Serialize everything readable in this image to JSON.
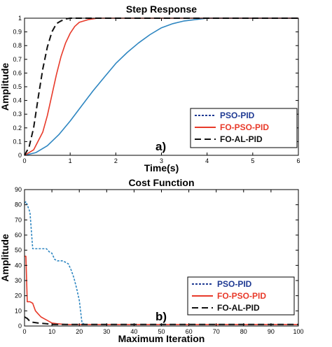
{
  "chart_data": [
    {
      "type": "line",
      "title": "Step Response",
      "xlabel": "Time(s)",
      "ylabel": "Amplitude",
      "panel_label": "a)",
      "xlim": [
        0,
        6
      ],
      "ylim": [
        0,
        1
      ],
      "xticks": [
        0,
        1,
        2,
        3,
        4,
        5,
        6
      ],
      "yticks": [
        0,
        0.1,
        0.2,
        0.3,
        0.4,
        0.5,
        0.6,
        0.7,
        0.8,
        0.9,
        1
      ],
      "legend_position": "bottom-right",
      "grid": false,
      "legend": [
        {
          "label": "PSO-PID",
          "color": "#1f3a93",
          "dash": "dotted"
        },
        {
          "label": "FO-PSO-PID",
          "color": "#e83a2a",
          "dash": "solid"
        },
        {
          "label": "FO-AL-PID",
          "color": "#111111",
          "dash": "dashed"
        }
      ],
      "series": [
        {
          "color": "#2e86c1",
          "dash": "solid",
          "x": [
            0,
            0.25,
            0.5,
            0.75,
            1.0,
            1.25,
            1.5,
            1.75,
            2.0,
            2.25,
            2.5,
            2.75,
            3.0,
            3.25,
            3.5,
            3.75,
            4.0,
            4.5,
            5.0,
            6.0
          ],
          "y": [
            0,
            0.02,
            0.07,
            0.15,
            0.25,
            0.36,
            0.47,
            0.57,
            0.67,
            0.75,
            0.82,
            0.88,
            0.93,
            0.96,
            0.98,
            0.99,
            1.0,
            1.0,
            1.0,
            1.0
          ]
        },
        {
          "color": "#e83a2a",
          "dash": "solid",
          "x": [
            0,
            0.2,
            0.4,
            0.5,
            0.6,
            0.7,
            0.8,
            0.9,
            1.0,
            1.1,
            1.2,
            1.4,
            1.6,
            1.8,
            2.0,
            2.5,
            3.0,
            6.0
          ],
          "y": [
            0,
            0.04,
            0.17,
            0.29,
            0.44,
            0.59,
            0.72,
            0.82,
            0.89,
            0.94,
            0.97,
            0.99,
            1.0,
            1.0,
            1.0,
            1.0,
            1.0,
            1.0
          ]
        },
        {
          "color": "#111111",
          "dash": "dashed",
          "x": [
            0,
            0.1,
            0.2,
            0.3,
            0.4,
            0.5,
            0.6,
            0.7,
            0.8,
            0.9,
            1.0,
            1.2,
            6.0
          ],
          "y": [
            0,
            0.06,
            0.2,
            0.42,
            0.63,
            0.79,
            0.9,
            0.96,
            0.98,
            0.995,
            1.0,
            1.0,
            1.0
          ]
        }
      ]
    },
    {
      "type": "line",
      "title": "Cost Function",
      "xlabel": "Maximum Iteration",
      "ylabel": "Amplitude",
      "panel_label": "b)",
      "xlim": [
        0,
        100
      ],
      "ylim": [
        0,
        90
      ],
      "xticks": [
        0,
        10,
        20,
        30,
        40,
        50,
        60,
        70,
        80,
        90,
        100
      ],
      "yticks": [
        0,
        10,
        20,
        30,
        40,
        50,
        60,
        70,
        80,
        90
      ],
      "legend_position": "bottom-right",
      "grid": false,
      "legend": [
        {
          "label": "PSO-PID",
          "color": "#1f3a93",
          "dash": "dotted"
        },
        {
          "label": "FO-PSO-PID",
          "color": "#e83a2a",
          "dash": "solid"
        },
        {
          "label": "FO-AL-PID",
          "color": "#111111",
          "dash": "dashed"
        }
      ],
      "series": [
        {
          "color": "#2e86c1",
          "dash": "dotted",
          "x": [
            0,
            0.5,
            1,
            2,
            3,
            4,
            5,
            6,
            7,
            8,
            9,
            10,
            11,
            12,
            13,
            14,
            15,
            16,
            17,
            18,
            19,
            20,
            21,
            22,
            30,
            100
          ],
          "y": [
            81,
            82,
            80,
            75,
            51,
            51,
            51,
            51,
            51,
            51,
            49,
            48,
            44,
            43,
            43,
            43,
            42,
            41,
            37,
            32,
            25,
            17,
            2,
            1,
            1,
            1
          ]
        },
        {
          "color": "#e83a2a",
          "dash": "solid",
          "x": [
            0,
            0.5,
            1,
            2,
            3,
            4,
            5,
            6,
            7,
            8,
            10,
            12,
            15,
            20,
            100
          ],
          "y": [
            46,
            46,
            16,
            16,
            15,
            10,
            8,
            6,
            5,
            4,
            2,
            1.5,
            1,
            1,
            1
          ]
        },
        {
          "color": "#111111",
          "dash": "dashed",
          "x": [
            0,
            1,
            2,
            3,
            5,
            8,
            10,
            15,
            100
          ],
          "y": [
            6,
            5,
            3,
            2.5,
            2,
            1.5,
            1,
            1,
            1
          ]
        }
      ]
    }
  ]
}
